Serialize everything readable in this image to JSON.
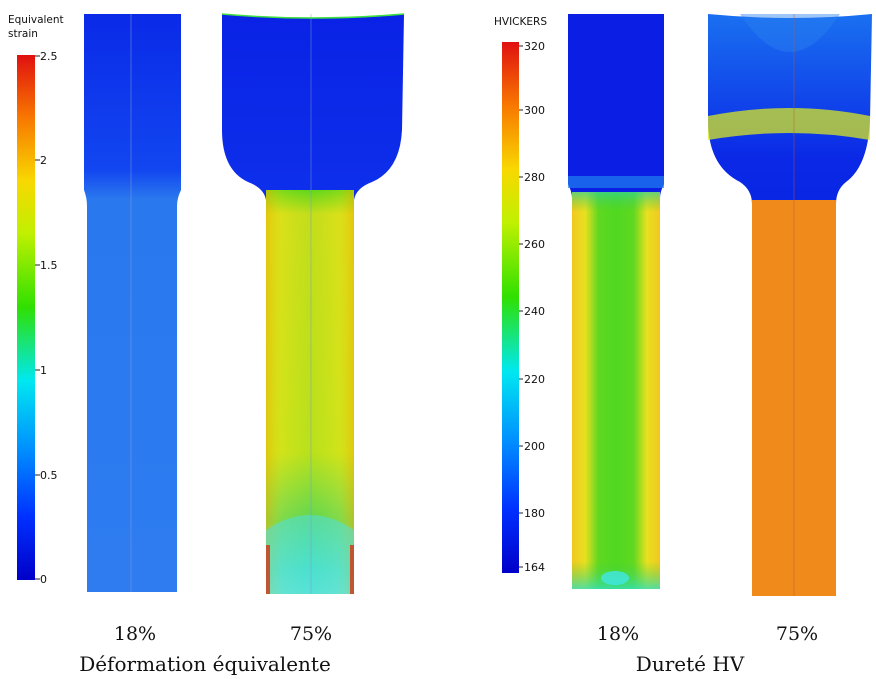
{
  "left_panel": {
    "legend": {
      "title_line1": "Equivalent",
      "title_line2": "strain",
      "ticks": [
        "2.5",
        "2",
        "1.5",
        "1",
        "0.5",
        "0"
      ]
    },
    "samples": [
      {
        "label": "18%"
      },
      {
        "label": "75%"
      }
    ],
    "caption": "Déformation équivalente"
  },
  "right_panel": {
    "legend": {
      "title": "HVICKERS",
      "ticks": [
        "320",
        "300",
        "280",
        "260",
        "240",
        "220",
        "200",
        "180",
        "164"
      ]
    },
    "samples": [
      {
        "label": "18%"
      },
      {
        "label": "75%"
      }
    ],
    "caption": "Dureté HV"
  },
  "colors": {
    "deep_blue": "#0a10e0",
    "blue": "#2a6ef0",
    "cyan": "#00e5f0",
    "green": "#22d000",
    "yellow": "#f2e400",
    "orange": "#f08a10",
    "red": "#e00000"
  }
}
